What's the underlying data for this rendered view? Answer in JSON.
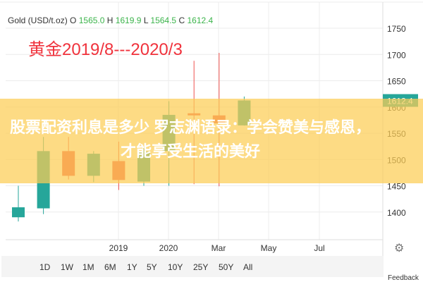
{
  "legend": {
    "symbol": "Gold (USD/t.oz)",
    "o_label": "O",
    "o": "1565.0",
    "h_label": "H",
    "h": "1619.9",
    "l_label": "L",
    "l": "1564.5",
    "c_label": "C",
    "c": "1612.4"
  },
  "annotation": "黄金2019/8---2020/3",
  "banner": {
    "text": "股票配资利息是多少 罗志渊语录：学会赞美与感恩，才能享受生活的美好"
  },
  "range_buttons": [
    "1D",
    "1W",
    "1M",
    "6M",
    "1Y",
    "5Y",
    "10Y",
    "25Y",
    "50Y",
    "All"
  ],
  "settings_icon": "gear-icon",
  "feedback": "Feedback",
  "colors": {
    "up": "#26a69a",
    "down": "#ef5350",
    "last_price_bg": "#26a69a",
    "annotation": "#f0323c",
    "banner": "#fccd55"
  },
  "chart_data": {
    "type": "candlestick",
    "title": "Gold (USD/t.oz)",
    "x_tick_labels": [
      "2019",
      "2020",
      "Mar",
      "May",
      "Jul"
    ],
    "y_ticks": [
      1400,
      1450,
      1500,
      1550,
      1600,
      1650,
      1700,
      1750
    ],
    "ylim": [
      1370,
      1770
    ],
    "last_price": "1612.4",
    "grid": true,
    "series": [
      {
        "o": 1390,
        "h": 1450,
        "l": 1382,
        "c": 1409
      },
      {
        "o": 1407,
        "h": 1543,
        "l": 1396,
        "c": 1516
      },
      {
        "o": 1516,
        "h": 1543,
        "l": 1462,
        "c": 1469
      },
      {
        "o": 1469,
        "h": 1516,
        "l": 1457,
        "c": 1511
      },
      {
        "o": 1497,
        "h": 1534,
        "l": 1442,
        "c": 1461
      },
      {
        "o": 1458,
        "h": 1523,
        "l": 1450,
        "c": 1515
      },
      {
        "o": 1516,
        "h": 1611,
        "l": 1450,
        "c": 1585
      },
      {
        "o": 1588,
        "h": 1688,
        "l": 1453,
        "c": 1584
      },
      {
        "o": 1584,
        "h": 1703,
        "l": 1449,
        "c": 1569
      },
      {
        "o": 1565.0,
        "h": 1619.9,
        "l": 1564.5,
        "c": 1612.4
      }
    ]
  }
}
